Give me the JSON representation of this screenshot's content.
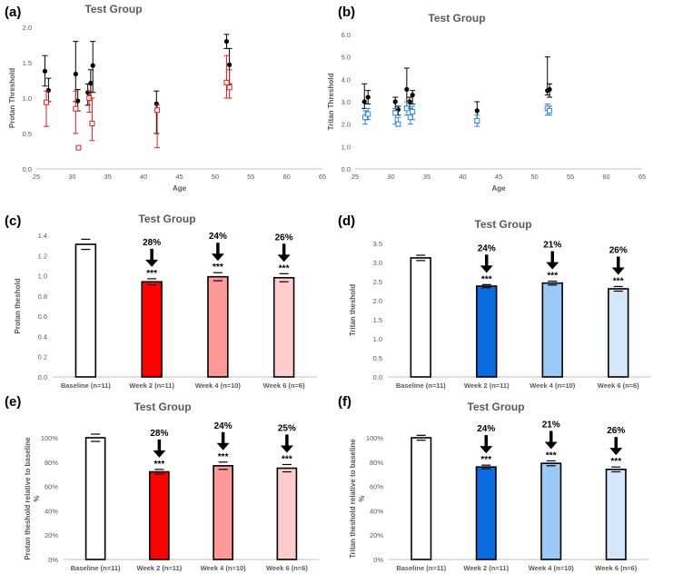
{
  "panels": [
    "(a)",
    "(b)",
    "(c)",
    "(d)",
    "(e)",
    "(f)"
  ],
  "chart_data": [
    {
      "panel": "(a)",
      "type": "scatter",
      "title": "Test Group",
      "xlabel": "Age",
      "ylabel": "Protan Threshold",
      "xlim": [
        25,
        65
      ],
      "ylim": [
        0,
        2.0
      ],
      "xticks": [
        "25",
        "30",
        "35",
        "40",
        "45",
        "50",
        "55",
        "60",
        "65"
      ],
      "yticks": [
        "0.0",
        "0.5",
        "1.0",
        "1.5",
        "2.0"
      ],
      "grid": false,
      "series": [
        {
          "marker": "filled-circle",
          "color": "#000000",
          "points": [
            [
              26.2,
              1.38,
              1.17,
              1.6
            ],
            [
              26.7,
              1.11,
              0.95,
              1.28
            ],
            [
              30.5,
              1.34,
              0.95,
              1.8
            ],
            [
              30.8,
              0.96,
              0.82,
              1.12
            ],
            [
              32.2,
              1.08,
              0.9,
              1.2
            ],
            [
              32.6,
              1.21,
              1.0,
              1.4
            ],
            [
              32.9,
              1.46,
              1.08,
              1.8
            ],
            [
              41.8,
              0.92,
              0.5,
              1.1
            ],
            [
              51.6,
              1.8,
              1.7,
              1.9
            ],
            [
              52.0,
              1.47,
              1.2,
              1.7
            ]
          ]
        },
        {
          "marker": "open-square",
          "color": "#e0201b",
          "points": [
            [
              26.4,
              0.94,
              0.6,
              1.1
            ],
            [
              30.5,
              0.85,
              0.5,
              1.1
            ],
            [
              30.9,
              0.3,
              0.3,
              0.3
            ],
            [
              32.4,
              1.0,
              0.8,
              1.1
            ],
            [
              32.8,
              0.64,
              0.4,
              1.0
            ],
            [
              41.9,
              0.83,
              0.3,
              0.9
            ],
            [
              51.6,
              1.22,
              1.0,
              1.6
            ],
            [
              52.0,
              1.15,
              1.0,
              1.4
            ]
          ]
        }
      ]
    },
    {
      "panel": "(b)",
      "type": "scatter",
      "title": "Test Group",
      "xlabel": "Age",
      "ylabel": "Tritan Threshold",
      "xlim": [
        25,
        65
      ],
      "ylim": [
        0,
        6.0
      ],
      "xticks": [
        "25",
        "30",
        "35",
        "40",
        "45",
        "50",
        "55",
        "60",
        "65"
      ],
      "yticks": [
        "0.0",
        "1.0",
        "2.0",
        "3.0",
        "4.0",
        "5.0",
        "6.0"
      ],
      "grid": false,
      "series": [
        {
          "marker": "filled-circle",
          "color": "#000000",
          "points": [
            [
              26.3,
              3.0,
              2.7,
              3.8
            ],
            [
              26.8,
              3.2,
              2.9,
              3.5
            ],
            [
              30.6,
              3.0,
              2.6,
              3.2
            ],
            [
              31.0,
              2.65,
              2.4,
              2.8
            ],
            [
              32.2,
              3.55,
              2.8,
              4.5
            ],
            [
              32.6,
              3.0,
              2.7,
              3.2
            ],
            [
              33.0,
              3.3,
              2.9,
              3.5
            ],
            [
              42.0,
              2.6,
              2.2,
              3.0
            ],
            [
              51.8,
              3.5,
              3.3,
              5.0
            ],
            [
              52.1,
              3.55,
              3.2,
              3.8
            ]
          ]
        },
        {
          "marker": "open-square",
          "color": "#2e86d6",
          "points": [
            [
              26.4,
              2.3,
              2.0,
              2.6
            ],
            [
              26.8,
              2.45,
              2.2,
              2.7
            ],
            [
              30.6,
              2.5,
              2.0,
              2.7
            ],
            [
              31.0,
              2.0,
              1.9,
              2.3
            ],
            [
              32.2,
              2.7,
              2.4,
              3.0
            ],
            [
              32.7,
              2.3,
              2.0,
              2.7
            ],
            [
              33.0,
              2.55,
              2.2,
              2.8
            ],
            [
              42.0,
              2.15,
              1.9,
              2.4
            ],
            [
              51.8,
              2.7,
              2.4,
              2.9
            ],
            [
              52.1,
              2.6,
              2.4,
              2.8
            ]
          ]
        }
      ]
    },
    {
      "panel": "(c)",
      "type": "bar",
      "title": "Test Group",
      "ylabel": "Protan theshold",
      "ylim": [
        0,
        1.4
      ],
      "yticks": [
        "0.0",
        "0.2",
        "0.4",
        "0.6",
        "0.8",
        "1.0",
        "1.2",
        "1.4"
      ],
      "categories": [
        "Baseline (n=11)",
        "Week 2 (n=11)",
        "Week 4 (n=10)",
        "Week 6 (n=6)"
      ],
      "values": [
        1.31,
        0.94,
        0.99,
        0.98
      ],
      "errors": [
        0.05,
        0.03,
        0.04,
        0.04
      ],
      "colors": [
        "#ffffff",
        "#ff0000",
        "#ff9999",
        "#ffcccc"
      ],
      "percent_labels": [
        "",
        "28%",
        "24%",
        "26%"
      ],
      "significance": [
        "",
        "***",
        "***",
        "***"
      ]
    },
    {
      "panel": "(d)",
      "type": "bar",
      "title": "Test Group",
      "ylabel": "Tritan theshold",
      "ylim": [
        0,
        3.5
      ],
      "yticks": [
        "0.0",
        "0.5",
        "1.0",
        "1.5",
        "2.0",
        "2.5",
        "3.0",
        "3.5"
      ],
      "categories": [
        "Baseline (n=11)",
        "Week 2 (n=11)",
        "Week 4 (n=10)",
        "Week 6 (n=6)"
      ],
      "values": [
        3.12,
        2.38,
        2.46,
        2.31
      ],
      "errors": [
        0.07,
        0.04,
        0.05,
        0.06
      ],
      "colors": [
        "#ffffff",
        "#0a6ae0",
        "#9cc8f6",
        "#d4e7fb"
      ],
      "percent_labels": [
        "",
        "24%",
        "21%",
        "26%"
      ],
      "significance": [
        "",
        "***",
        "***",
        "***"
      ]
    },
    {
      "panel": "(e)",
      "type": "bar",
      "title": "Test Group",
      "ylabel": "Protan theshold relative to baseline %",
      "ylim": [
        0,
        100
      ],
      "yticks": [
        "0%",
        "20%",
        "40%",
        "60%",
        "80%",
        "100%"
      ],
      "categories": [
        "Baseline (n=11)",
        "Week 2 (n=11)",
        "Week 4 (n=10)",
        "Week 6 (n=6)"
      ],
      "values": [
        100,
        72,
        77,
        75
      ],
      "errors": [
        3,
        2,
        3,
        3
      ],
      "colors": [
        "#ffffff",
        "#ff0000",
        "#ff9999",
        "#ffcccc"
      ],
      "percent_labels": [
        "",
        "28%",
        "24%",
        "25%"
      ],
      "significance": [
        "",
        "***",
        "***",
        "***"
      ]
    },
    {
      "panel": "(f)",
      "type": "bar",
      "title": "Test Group",
      "ylabel": "Tritan theshold relative to baseline %",
      "ylim": [
        0,
        100
      ],
      "yticks": [
        "0%",
        "20%",
        "40%",
        "60%",
        "80%",
        "100%"
      ],
      "categories": [
        "Baseline (n=11)",
        "Week 2 (n=11)",
        "Week 4 (n=10)",
        "Week 6 (n=6)"
      ],
      "values": [
        100,
        76,
        79,
        74
      ],
      "errors": [
        2,
        1.5,
        2,
        2
      ],
      "colors": [
        "#ffffff",
        "#0a6ae0",
        "#9cc8f6",
        "#d4e7fb"
      ],
      "percent_labels": [
        "",
        "24%",
        "21%",
        "26%"
      ],
      "significance": [
        "",
        "***",
        "***",
        "***"
      ]
    }
  ]
}
